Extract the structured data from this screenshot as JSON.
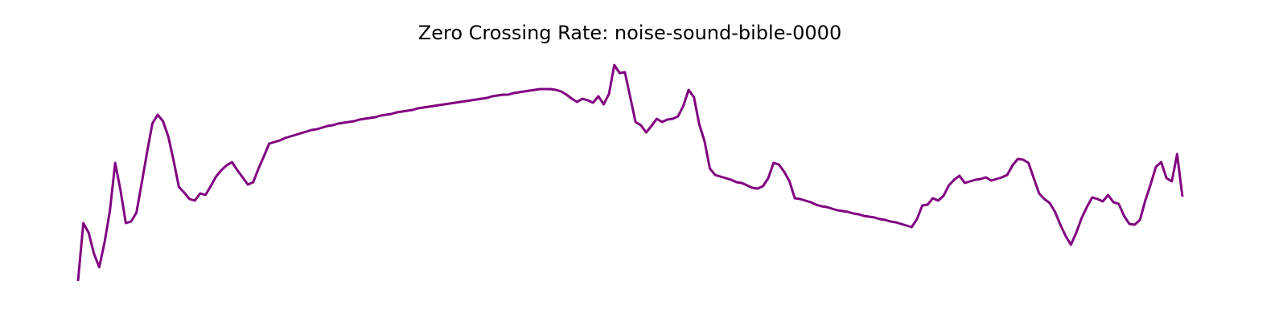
{
  "chart_data": {
    "type": "line",
    "title": "Zero Crossing Rate: noise-sound-bible-0000",
    "color": "#800080",
    "ylim": [
      0,
      300
    ],
    "values": [
      20,
      92,
      80,
      54,
      37,
      68,
      107,
      167,
      133,
      92,
      94,
      105,
      142,
      180,
      216,
      227,
      219,
      200,
      170,
      137,
      130,
      122,
      120,
      129,
      127,
      138,
      150,
      158,
      164,
      168,
      158,
      149,
      140,
      143,
      160,
      175,
      191,
      193,
      195,
      198,
      200,
      202,
      204,
      206,
      208,
      209,
      211,
      213,
      214,
      216,
      217,
      218,
      219,
      221,
      222,
      223,
      224,
      226,
      227,
      228,
      230,
      231,
      232,
      233,
      235,
      236,
      237,
      238,
      239,
      240,
      241,
      242,
      243,
      244,
      245,
      246,
      247,
      248,
      250,
      251,
      252,
      252,
      254,
      255,
      256,
      257,
      258,
      259,
      259,
      259,
      258,
      256,
      252,
      247,
      243,
      247,
      245,
      242,
      250,
      240,
      253,
      289,
      279,
      280,
      249,
      218,
      214,
      205,
      213,
      222,
      218,
      221,
      222,
      225,
      238,
      258,
      249,
      215,
      194,
      160,
      152,
      150,
      148,
      146,
      143,
      142,
      139,
      136,
      135,
      138,
      148,
      167,
      165,
      156,
      144,
      123,
      122,
      120,
      118,
      115,
      113,
      112,
      110,
      108,
      107,
      106,
      104,
      103,
      101,
      100,
      99,
      97,
      96,
      94,
      93,
      91,
      89,
      87,
      97,
      114,
      115,
      123,
      120,
      126,
      139,
      146,
      151,
      142,
      144,
      146,
      147,
      149,
      145,
      147,
      149,
      152,
      164,
      172,
      171,
      167,
      148,
      129,
      122,
      117,
      106,
      90,
      76,
      65,
      80,
      98,
      112,
      124,
      122,
      119,
      127,
      118,
      116,
      101,
      91,
      90,
      96,
      120,
      140,
      162,
      168,
      148,
      144,
      178,
      125
    ]
  }
}
